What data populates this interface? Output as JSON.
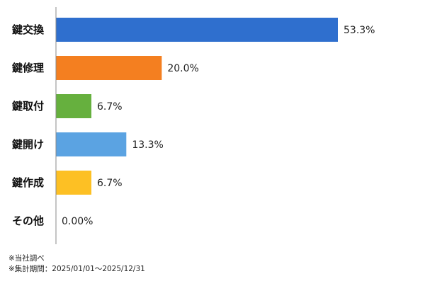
{
  "chart_data": {
    "type": "bar",
    "orientation": "horizontal",
    "categories": [
      "鍵交換",
      "鍵修理",
      "鍵取付",
      "鍵開け",
      "鍵作成",
      "その他"
    ],
    "values": [
      53.3,
      20.0,
      6.7,
      13.3,
      6.7,
      0.0
    ],
    "value_labels": [
      "53.3%",
      "20.0%",
      "6.7%",
      "13.3%",
      "6.7%",
      "0.00%"
    ],
    "colors": [
      "#2f6fce",
      "#f47f20",
      "#66b03e",
      "#5ba3e2",
      "#fdc024",
      "#cccccc"
    ],
    "xlim": [
      0,
      53.3
    ],
    "grid": false,
    "legend": "none"
  },
  "notes": {
    "source": "※当社調べ",
    "period": "※集計期間：2025/01/01～2025/12/31"
  }
}
